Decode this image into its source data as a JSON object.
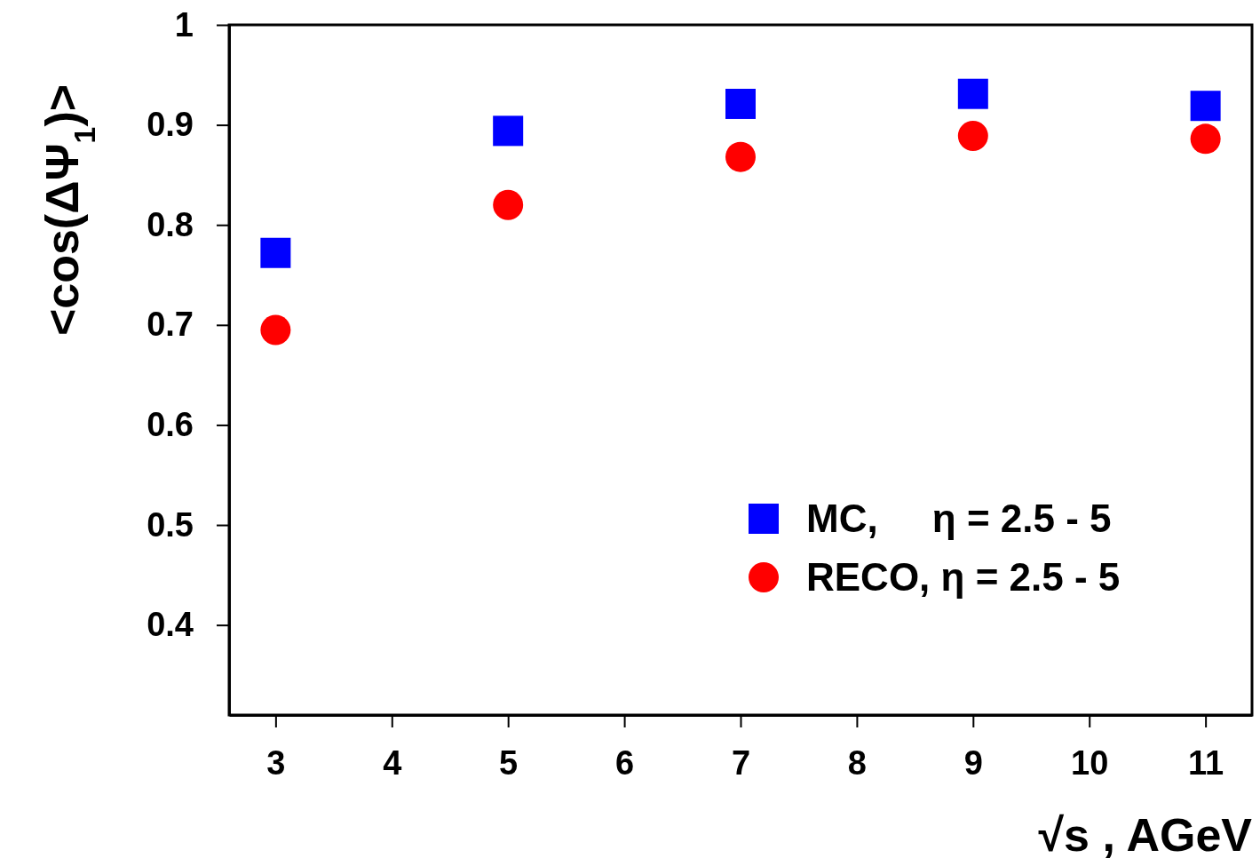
{
  "chart_data": {
    "type": "scatter",
    "xlabel": "√s , AGeV",
    "ylabel": "<cos(ΔΨ$_{1}$)>",
    "x": [
      3,
      5,
      7,
      9,
      11
    ],
    "series": [
      {
        "name": "MC,     η = 2.5 - 5",
        "color": "#0000ff",
        "marker": "square",
        "values": [
          0.772,
          0.894,
          0.921,
          0.931,
          0.919
        ]
      },
      {
        "name": "RECO, η = 2.5 - 5",
        "color": "#ff0000",
        "marker": "circle",
        "values": [
          0.695,
          0.82,
          0.868,
          0.889,
          0.886
        ]
      }
    ],
    "xlim": [
      2.6,
      11.4
    ],
    "xticks": [
      3,
      4,
      5,
      6,
      7,
      8,
      9,
      10,
      11
    ],
    "ylim": [
      0.31,
      1
    ],
    "yticks": [
      0.4,
      0.5,
      0.6,
      0.7,
      0.8,
      0.9,
      1
    ],
    "legend": "bottom right",
    "grid": false
  }
}
